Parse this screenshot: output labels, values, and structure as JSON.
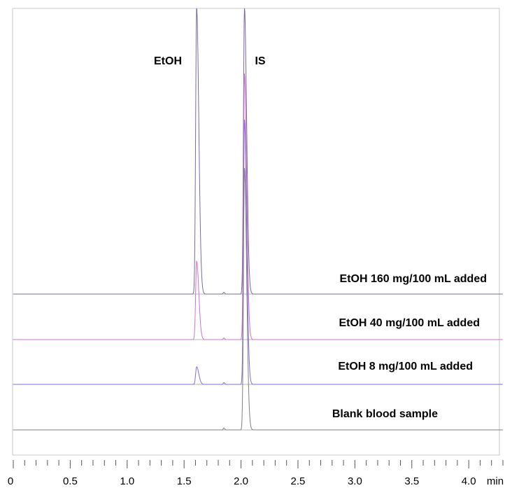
{
  "chart_data": {
    "type": "line",
    "xlabel": "",
    "ylabel": "",
    "x_unit": "min",
    "xlim": [
      0,
      4.3
    ],
    "x_ticks": [
      "0",
      "0.5",
      "1.0",
      "1.5",
      "2.0",
      "2.5",
      "3.0",
      "3.5",
      "4.0"
    ],
    "x_tick_values": [
      0,
      0.5,
      1.0,
      1.5,
      2.0,
      2.5,
      3.0,
      3.5,
      4.0
    ],
    "grid": false,
    "peak_labels": [
      {
        "text": "EtOH",
        "x": 1.6
      },
      {
        "text": "IS",
        "x": 2.03
      }
    ],
    "series": [
      {
        "name": "EtOH 160 mg/100 mL added",
        "color": "#7a6a9a",
        "peaks": [
          {
            "x": 1.61,
            "height": 1.0
          },
          {
            "x": 2.03,
            "height": 1.0
          }
        ]
      },
      {
        "name": "EtOH 40 mg/100 mL added",
        "color": "#d070d0",
        "peaks": [
          {
            "x": 1.61,
            "height": 0.28
          },
          {
            "x": 2.03,
            "height": 0.95
          }
        ]
      },
      {
        "name": "EtOH 8 mg/100 mL added",
        "color": "#8a6ad8",
        "peaks": [
          {
            "x": 1.61,
            "height": 0.06
          },
          {
            "x": 2.03,
            "height": 0.9
          }
        ]
      },
      {
        "name": "Blank blood sample",
        "color": "#808080",
        "peaks": [
          {
            "x": 1.61,
            "height": 0.0
          },
          {
            "x": 2.03,
            "height": 0.85
          }
        ]
      }
    ]
  }
}
